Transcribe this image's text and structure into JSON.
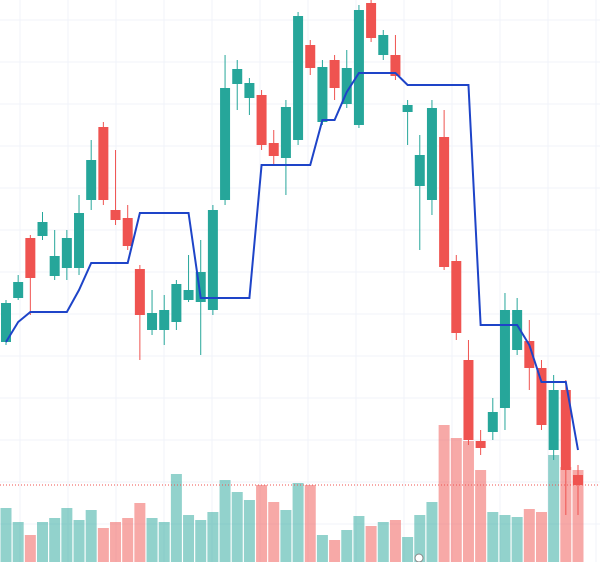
{
  "chart_data": {
    "type": "candlestick",
    "ylim": [
      0,
      562
    ],
    "up_color": "#26a69a",
    "down_color": "#ef5350",
    "open": [
      220,
      264,
      324,
      326,
      286,
      294,
      294,
      362,
      435,
      352,
      344,
      293,
      232,
      232,
      240,
      262,
      260,
      252,
      362,
      478,
      464,
      467,
      419,
      404,
      422,
      517,
      440,
      502,
      458,
      437,
      559,
      507,
      507,
      450,
      376,
      362,
      425,
      301,
      202,
      121,
      130,
      154,
      212,
      221,
      194,
      112,
      172,
      87
    ],
    "high": [
      262,
      287,
      327,
      350,
      332,
      332,
      367,
      422,
      440,
      412,
      357,
      297,
      272,
      267,
      282,
      307,
      322,
      357,
      507,
      502,
      484,
      472,
      432,
      462,
      550,
      522,
      502,
      507,
      512,
      557,
      562,
      532,
      527,
      462,
      427,
      462,
      452,
      307,
      222,
      132,
      164,
      269,
      264,
      242,
      202,
      187,
      182,
      97
    ],
    "low": [
      217,
      262,
      247,
      322,
      282,
      282,
      287,
      352,
      357,
      337,
      312,
      202,
      227,
      217,
      232,
      260,
      207,
      247,
      357,
      452,
      447,
      412,
      397,
      367,
      417,
      487,
      437,
      462,
      454,
      434,
      520,
      502,
      482,
      417,
      312,
      347,
      292,
      222,
      117,
      107,
      122,
      132,
      207,
      172,
      132,
      102,
      47,
      47
    ],
    "close": [
      259,
      280,
      284,
      340,
      306,
      324,
      349,
      402,
      362,
      342,
      316,
      247,
      249,
      252,
      278,
      272,
      290,
      352,
      474,
      493,
      479,
      417,
      406,
      455,
      546,
      494,
      495,
      474,
      494,
      552,
      524,
      527,
      486,
      457,
      407,
      454,
      295,
      229,
      122,
      114,
      150,
      252,
      252,
      194,
      137,
      172,
      92,
      77
    ],
    "volume": {
      "ylim": [
        0,
        562
      ],
      "opacity": 0.5,
      "values": [
        54,
        40,
        27,
        40,
        44,
        54,
        42,
        52,
        34,
        40,
        44,
        59,
        44,
        40,
        88,
        47,
        42,
        50,
        82,
        70,
        62,
        77,
        60,
        52,
        79,
        77,
        27,
        22,
        32,
        46,
        36,
        40,
        42,
        25,
        47,
        60,
        137,
        124,
        121,
        92,
        50,
        47,
        45,
        53,
        50,
        107,
        95,
        92
      ]
    },
    "line": {
      "color": "#1e44c8",
      "values": [
        220,
        240,
        250,
        250,
        250,
        250,
        272,
        299,
        299,
        299,
        299,
        349,
        349,
        349,
        349,
        349,
        264,
        264,
        264,
        264,
        264,
        397,
        397,
        397,
        397,
        397,
        442,
        442,
        470,
        489,
        489,
        489,
        489,
        477,
        477,
        477,
        477,
        477,
        477,
        237,
        237,
        237,
        237,
        217,
        180,
        180,
        180,
        112
      ]
    },
    "price_line_color": "#ef5350"
  }
}
